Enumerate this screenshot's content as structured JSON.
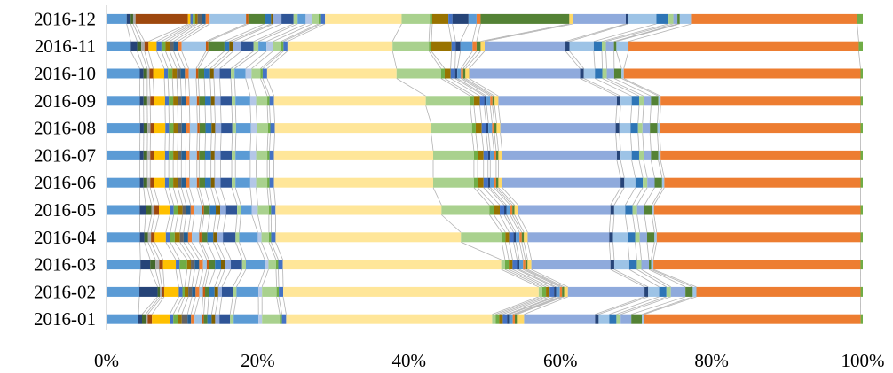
{
  "chart_data": {
    "type": "bar",
    "orientation": "horizontal",
    "stacked": "100%",
    "series_lines": true,
    "title": "",
    "xlabel": "",
    "ylabel": "",
    "xlim": [
      0,
      100
    ],
    "grid": false,
    "legend": "none",
    "x_tick_labels": [
      "0%",
      "20%",
      "40%",
      "60%",
      "80%",
      "100%"
    ],
    "categories": [
      "2016-12",
      "2016-11",
      "2016-10",
      "2016-09",
      "2016-08",
      "2016-07",
      "2016-06",
      "2016-05",
      "2016-04",
      "2016-03",
      "2016-02",
      "2016-01"
    ],
    "series": [
      {
        "color": "#5b9bd5",
        "values": [
          2.5,
          3.0,
          4.5,
          4.5,
          4.5,
          4.5,
          4.5,
          4.5,
          4.5,
          4.5,
          4.5,
          4.5
        ]
      },
      {
        "color": "#264478",
        "values": [
          0.5,
          0.8,
          0.5,
          0.5,
          0.5,
          0.5,
          0.5,
          0.8,
          0.6,
          1.3,
          2.5,
          0.5
        ]
      },
      {
        "color": "#43682b",
        "values": [
          0.3,
          0.5,
          0.5,
          0.5,
          0.5,
          0.5,
          0.5,
          0.8,
          0.5,
          0.7,
          0.3,
          0.5
        ]
      },
      {
        "color": "#a5a5a5",
        "values": [
          0.3,
          0.4,
          0.3,
          0.4,
          0.4,
          0.4,
          0.4,
          0.4,
          0.4,
          0.5,
          0.3,
          0.3
        ]
      },
      {
        "color": "#9e480e",
        "values": [
          6.5,
          0.5,
          0.5,
          0.5,
          0.5,
          0.5,
          0.5,
          0.6,
          0.5,
          0.5,
          0.3,
          0.6
        ]
      },
      {
        "color": "#ffc000",
        "values": [
          0.3,
          1.0,
          1.5,
          1.5,
          1.5,
          1.5,
          1.5,
          1.5,
          1.5,
          1.7,
          2.0,
          2.5
        ]
      },
      {
        "color": "#4472c4",
        "values": [
          0.3,
          0.6,
          0.5,
          0.5,
          0.5,
          0.5,
          0.5,
          0.5,
          0.6,
          0.5,
          0.5,
          0.5
        ]
      },
      {
        "color": "#70ad47",
        "values": [
          0.3,
          0.5,
          0.6,
          0.6,
          0.6,
          0.6,
          0.6,
          0.6,
          0.6,
          1.0,
          0.3,
          0.6
        ]
      },
      {
        "color": "#997300",
        "values": [
          0.3,
          0.5,
          0.6,
          0.6,
          0.6,
          0.6,
          0.6,
          0.6,
          0.7,
          0.5,
          0.5,
          0.6
        ]
      },
      {
        "color": "#636363",
        "values": [
          0.5,
          0.5,
          0.5,
          0.5,
          0.5,
          0.5,
          0.5,
          0.5,
          0.5,
          0.5,
          0.5,
          0.8
        ]
      },
      {
        "color": "#255e91",
        "values": [
          0.5,
          0.5,
          0.6,
          0.6,
          0.6,
          0.6,
          0.6,
          0.6,
          0.6,
          0.6,
          0.5,
          0.5
        ]
      },
      {
        "color": "#ed7d31",
        "values": [
          0.5,
          0.5,
          0.5,
          0.5,
          0.5,
          0.5,
          0.5,
          0.5,
          0.5,
          0.5,
          0.5,
          0.5
        ]
      },
      {
        "color": "#9dc3e6",
        "values": [
          4.5,
          3.0,
          1.0,
          1.0,
          1.0,
          1.0,
          1.0,
          1.0,
          1.0,
          0.5,
          0.5,
          1.0
        ]
      },
      {
        "color": "#c55a11",
        "values": [
          0.3,
          0.3,
          0.3,
          0.3,
          0.3,
          0.3,
          0.3,
          0.3,
          0.3,
          0.3,
          0.3,
          0.3
        ]
      },
      {
        "color": "#548235",
        "values": [
          2.0,
          2.0,
          0.8,
          0.8,
          0.8,
          0.8,
          0.8,
          0.8,
          0.8,
          0.8,
          0.5,
          0.5
        ]
      },
      {
        "color": "#2e75b6",
        "values": [
          0.8,
          0.6,
          0.8,
          0.8,
          0.8,
          0.8,
          0.8,
          0.8,
          0.8,
          0.8,
          0.8,
          0.6
        ]
      },
      {
        "color": "#7f6000",
        "values": [
          0.3,
          0.5,
          0.5,
          0.5,
          0.5,
          0.5,
          0.5,
          0.6,
          0.5,
          0.5,
          0.5,
          0.5
        ]
      },
      {
        "color": "#8faadc",
        "values": [
          1.0,
          1.0,
          0.8,
          0.8,
          0.8,
          0.8,
          0.8,
          0.8,
          0.8,
          0.8,
          0.5,
          0.6
        ]
      },
      {
        "color": "#2f5597",
        "values": [
          1.5,
          1.5,
          1.5,
          1.5,
          1.5,
          1.5,
          1.5,
          1.5,
          1.7,
          1.5,
          1.5,
          1.5
        ]
      },
      {
        "color": "#a9d18e",
        "values": [
          0.5,
          0.6,
          0.5,
          0.5,
          0.5,
          0.5,
          0.5,
          0.5,
          0.5,
          0.5,
          0.5,
          0.5
        ]
      },
      {
        "color": "#5b9bd5",
        "values": [
          1.0,
          1.0,
          1.5,
          2.0,
          2.0,
          2.0,
          2.0,
          1.5,
          2.5,
          2.5,
          3.0,
          3.5
        ]
      },
      {
        "color": "#b4c7e7",
        "values": [
          0.8,
          0.8,
          0.8,
          0.8,
          0.8,
          0.8,
          0.8,
          0.8,
          0.5,
          0.5,
          0.5,
          0.5
        ]
      },
      {
        "color": "#a9d18e",
        "values": [
          0.8,
          1.0,
          1.2,
          1.5,
          1.5,
          1.5,
          1.5,
          1.5,
          1.0,
          1.0,
          2.0,
          2.5
        ]
      },
      {
        "color": "#70ad47",
        "values": [
          0.3,
          0.3,
          0.3,
          0.3,
          0.3,
          0.3,
          0.3,
          0.3,
          0.3,
          0.3,
          0.3,
          0.3
        ]
      },
      {
        "color": "#4472c4",
        "values": [
          0.5,
          0.5,
          0.6,
          0.6,
          0.6,
          0.6,
          0.6,
          0.6,
          0.6,
          0.6,
          0.6,
          0.6
        ]
      },
      {
        "color": "#ffe699",
        "values": [
          9.5,
          13.0,
          17.5,
          20.5,
          21.0,
          21.5,
          21.5,
          22.5,
          25.0,
          29.0,
          35.0,
          29.0
        ]
      },
      {
        "color": "#a9d18e",
        "values": [
          3.5,
          4.5,
          6.0,
          6.0,
          5.5,
          5.5,
          5.5,
          6.5,
          5.5,
          0.5,
          0.5,
          0.5
        ]
      },
      {
        "color": "#70ad47",
        "values": [
          0.3,
          0.3,
          0.5,
          0.5,
          0.5,
          0.5,
          0.5,
          0.6,
          0.5,
          0.5,
          0.5,
          0.5
        ]
      },
      {
        "color": "#997300",
        "values": [
          2.0,
          2.5,
          0.8,
          0.8,
          0.8,
          0.8,
          0.8,
          0.8,
          0.5,
          0.5,
          0.5,
          0.5
        ]
      },
      {
        "color": "#4472c4",
        "values": [
          0.5,
          0.5,
          0.6,
          0.6,
          0.6,
          0.6,
          0.6,
          0.6,
          0.6,
          0.6,
          0.6,
          0.6
        ]
      },
      {
        "color": "#264478",
        "values": [
          2.0,
          0.6,
          0.3,
          0.3,
          0.3,
          0.3,
          0.3,
          0.3,
          0.3,
          0.3,
          0.3,
          0.3
        ]
      },
      {
        "color": "#5b9bd5",
        "values": [
          1.0,
          1.5,
          0.5,
          0.5,
          0.5,
          0.5,
          0.5,
          0.5,
          0.5,
          0.5,
          0.5,
          0.5
        ]
      },
      {
        "color": "#ed7d31",
        "values": [
          0.5,
          0.5,
          0.3,
          0.3,
          0.3,
          0.3,
          0.3,
          0.3,
          0.3,
          0.3,
          0.3,
          0.3
        ]
      },
      {
        "color": "#548235",
        "values": [
          11.0,
          0.5,
          0.3,
          0.3,
          0.3,
          0.3,
          0.3,
          0.3,
          0.3,
          0.3,
          0.3,
          0.3
        ]
      },
      {
        "color": "#ffd966",
        "values": [
          0.5,
          0.5,
          0.5,
          0.5,
          0.5,
          0.5,
          0.5,
          0.5,
          0.5,
          0.5,
          0.5,
          1.0
        ]
      },
      {
        "color": "#8faadc",
        "values": [
          6.5,
          10.0,
          15.0,
          16.0,
          15.5,
          15.5,
          16.0,
          12.5,
          11.0,
          10.5,
          10.5,
          10.0
        ]
      },
      {
        "color": "#264478",
        "values": [
          0.3,
          0.5,
          0.5,
          0.5,
          0.5,
          0.5,
          0.5,
          0.5,
          0.5,
          0.5,
          0.5,
          0.5
        ]
      },
      {
        "color": "#9dc3e6",
        "values": [
          3.5,
          3.0,
          1.5,
          1.5,
          1.5,
          1.5,
          1.5,
          1.5,
          2.0,
          2.0,
          1.5,
          1.5
        ]
      },
      {
        "color": "#2e75b6",
        "values": [
          1.5,
          1.0,
          1.0,
          1.0,
          1.0,
          1.0,
          1.0,
          1.0,
          1.0,
          1.0,
          1.0,
          1.0
        ]
      },
      {
        "color": "#a9d18e",
        "values": [
          0.6,
          0.5,
          0.6,
          0.6,
          0.6,
          0.6,
          0.6,
          0.6,
          0.6,
          0.6,
          0.6,
          0.6
        ]
      },
      {
        "color": "#8faadc",
        "values": [
          0.5,
          1.0,
          1.0,
          1.0,
          1.0,
          1.0,
          1.0,
          1.0,
          1.0,
          1.0,
          2.0,
          1.5
        ]
      },
      {
        "color": "#548235",
        "values": [
          0.3,
          0.3,
          1.0,
          1.0,
          1.0,
          1.0,
          1.0,
          1.0,
          1.0,
          0.3,
          1.0,
          1.5
        ]
      },
      {
        "color": "#9dc3e6",
        "values": [
          1.5,
          1.5,
          0.3,
          0.3,
          0.3,
          0.3,
          0.3,
          0.3,
          0.3,
          0.3,
          0.5,
          0.3
        ]
      },
      {
        "color": "#ed7d31",
        "values": [
          20.5,
          28.5,
          32.0,
          27.0,
          27.0,
          27.0,
          26.5,
          28.0,
          27.5,
          27.5,
          22.5,
          30.5
        ]
      },
      {
        "color": "#70ad47",
        "values": [
          0.7,
          0.5,
          0.3,
          0.3,
          0.3,
          0.3,
          0.3,
          0.3,
          0.3,
          0.3,
          0.3,
          0.3
        ]
      }
    ]
  }
}
